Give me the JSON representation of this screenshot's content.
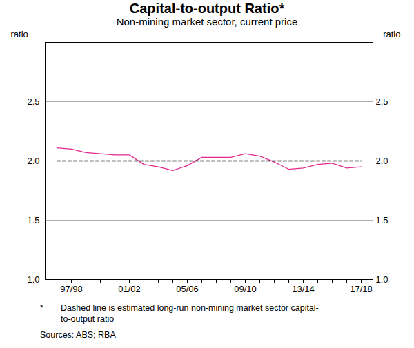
{
  "chart_data": {
    "type": "line",
    "title": "Capital-to-output Ratio*",
    "subtitle": "Non-mining market sector, current price",
    "y_label": "ratio",
    "note": "*",
    "note_text": "Dashed line is estimated long-run non-mining market sector capital-to-output ratio",
    "source": "Sources:  ABS; RBA",
    "categories": [
      null,
      "97/98",
      null,
      null,
      null,
      "01/02",
      null,
      null,
      null,
      "05/06",
      null,
      null,
      null,
      "09/10",
      null,
      null,
      null,
      "13/14",
      null,
      null,
      null,
      "17/18"
    ],
    "series": [
      {
        "color": "#e2288c",
        "line_style": "solid",
        "values": [
          2.11,
          2.1,
          2.07,
          2.06,
          2.05,
          2.05,
          1.97,
          1.95,
          1.92,
          1.96,
          2.03,
          2.03,
          2.03,
          2.06,
          2.04,
          1.99,
          1.93,
          1.94,
          1.97,
          1.98,
          1.94,
          1.95
        ]
      },
      {
        "color": "#000000",
        "line_style": "dashed",
        "values": [
          2.0,
          2.0,
          2.0,
          2.0,
          2.0,
          2.0,
          2.0,
          2.0,
          2.0,
          2.0,
          2.0,
          2.0,
          2.0,
          2.0,
          2.0,
          2.0,
          2.0,
          2.0,
          2.0,
          2.0,
          2.0,
          2.0
        ]
      }
    ],
    "ylim": [
      1.0,
      3.0
    ],
    "yticks": [
      {
        "value": 1.0,
        "label": "1.0"
      },
      {
        "value": 1.5,
        "label": "1.5"
      },
      {
        "value": 2.0,
        "label": "2.0"
      },
      {
        "value": 2.5,
        "label": "2.5"
      }
    ],
    "grid": true
  }
}
